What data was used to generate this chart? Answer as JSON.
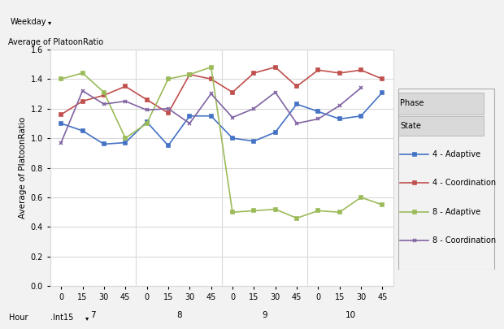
{
  "ylabel": "Average of PlatoonRatio",
  "ylim": [
    0,
    1.6
  ],
  "yticks": [
    0,
    0.2,
    0.4,
    0.6,
    0.8,
    1.0,
    1.2,
    1.4,
    1.6
  ],
  "hour_groups": [
    7,
    8,
    9,
    10
  ],
  "x_labels": [
    "0",
    "15",
    "30",
    "45",
    "0",
    "15",
    "30",
    "45",
    "0",
    "15",
    "30",
    "45",
    "0",
    "15",
    "30",
    "45"
  ],
  "series_order": [
    "4_adaptive",
    "4_coordination",
    "8_adaptive",
    "8_coordination"
  ],
  "series": {
    "4_adaptive": {
      "label": "4 - Adaptive",
      "color": "#4472C4",
      "marker": "s",
      "values": [
        1.1,
        1.05,
        0.96,
        0.97,
        1.11,
        0.95,
        1.15,
        1.15,
        1.0,
        0.98,
        1.04,
        1.23,
        1.18,
        1.13,
        1.15,
        1.31
      ]
    },
    "4_coordination": {
      "label": "4 - Coordination",
      "color": "#C0504D",
      "marker": "s",
      "values": [
        1.16,
        1.25,
        1.29,
        1.35,
        1.26,
        1.17,
        1.43,
        1.4,
        1.31,
        1.44,
        1.48,
        1.35,
        1.46,
        1.44,
        1.46,
        1.4
      ]
    },
    "8_adaptive": {
      "label": "8 - Adaptive",
      "color": "#9BBB59",
      "marker": "s",
      "values": [
        1.4,
        1.44,
        1.31,
        1.0,
        1.1,
        1.4,
        1.43,
        1.48,
        0.5,
        0.51,
        0.52,
        0.46,
        0.51,
        0.5,
        0.6,
        0.55
      ]
    },
    "8_coordination": {
      "label": "8 - Coordination",
      "color": "#8064A2",
      "marker": "x",
      "values": [
        0.97,
        1.32,
        1.23,
        1.25,
        1.19,
        1.2,
        1.1,
        1.3,
        1.14,
        1.2,
        1.31,
        1.1,
        1.13,
        1.22,
        1.34,
        null
      ]
    }
  },
  "background_color": "#F2F2F2",
  "plot_bg_color": "#FFFFFF",
  "grid_color": "#D9D9D9",
  "divider_color": "#D9D9D9",
  "header_bg": "#D9D9D9",
  "header_border": "#AAAAAA"
}
